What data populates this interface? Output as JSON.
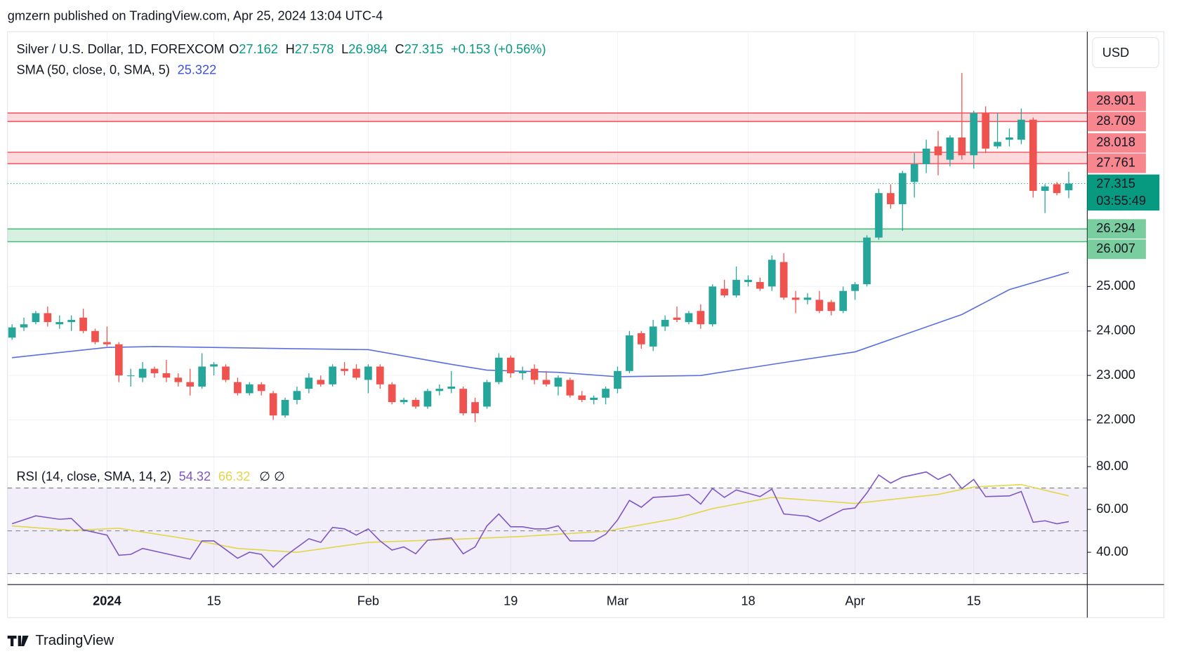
{
  "header": {
    "attribution": "gmzern published on TradingView.com, Apr 25, 2024 13:04 UTC-4"
  },
  "currency": "USD",
  "footer": {
    "brand": "TradingView"
  },
  "chart_data": [
    {
      "type": "candlestick",
      "title": "Silver / U.S. Dollar, 1D, FOREXCOM",
      "ohlc_legend": [
        {
          "label": "O",
          "value": "27.162"
        },
        {
          "label": "H",
          "value": "27.578"
        },
        {
          "label": "L",
          "value": "26.984"
        },
        {
          "label": "C",
          "value": "27.315"
        }
      ],
      "change": "+0.153 (+0.56%)",
      "up_color": "#26a69a",
      "down_color": "#ef5350",
      "open": [
        23.85,
        24.08,
        24.2,
        24.4,
        24.15,
        24.2,
        24.3,
        24.0,
        23.75,
        23.7,
        23.0,
        22.95,
        23.15,
        23.05,
        22.95,
        22.85,
        22.75,
        23.2,
        23.2,
        22.85,
        22.6,
        22.8,
        22.6,
        22.1,
        22.45,
        22.7,
        22.9,
        22.8,
        23.15,
        23.15,
        22.9,
        23.2,
        22.8,
        22.4,
        22.45,
        22.3,
        22.65,
        22.7,
        22.7,
        22.4,
        22.3,
        22.85,
        23.4,
        23.05,
        23.15,
        22.9,
        22.75,
        22.9,
        22.55,
        22.45,
        22.5,
        22.7,
        23.1,
        23.95,
        23.65,
        24.1,
        24.3,
        24.2,
        24.45,
        24.15,
        24.95,
        24.8,
        25.1,
        25.1,
        25.0,
        25.55,
        24.75,
        24.7,
        24.7,
        24.65,
        24.45,
        24.9,
        25.05,
        26.1,
        27.1,
        26.85,
        27.35,
        27.75,
        28.15,
        27.85,
        28.35,
        27.95,
        28.9,
        28.15,
        28.3,
        28.3,
        28.75,
        27.15,
        27.3,
        27.162
      ],
      "high": [
        24.15,
        24.3,
        24.45,
        24.55,
        24.35,
        24.35,
        24.5,
        24.05,
        24.1,
        23.75,
        23.15,
        23.3,
        23.2,
        23.35,
        23.05,
        23.15,
        23.5,
        23.3,
        23.25,
        22.95,
        22.85,
        22.85,
        22.65,
        22.5,
        22.75,
        23.05,
        23.0,
        23.25,
        23.3,
        23.25,
        23.25,
        23.25,
        22.85,
        22.5,
        22.5,
        22.7,
        22.8,
        23.1,
        22.75,
        22.5,
        22.9,
        23.5,
        23.45,
        23.2,
        23.25,
        23.1,
        23.0,
        22.95,
        22.65,
        22.55,
        22.75,
        23.2,
        24.0,
        24.0,
        24.25,
        24.35,
        24.55,
        24.45,
        24.6,
        25.05,
        25.15,
        25.45,
        25.25,
        25.2,
        25.7,
        25.75,
        24.9,
        24.85,
        24.9,
        24.7,
        25.0,
        25.1,
        26.15,
        27.2,
        27.3,
        27.6,
        28.0,
        28.3,
        28.5,
        28.4,
        29.8,
        28.95,
        29.05,
        28.9,
        28.55,
        29.0,
        28.8,
        27.3,
        27.35,
        27.578
      ],
      "low": [
        23.8,
        24.0,
        24.15,
        24.1,
        24.05,
        24.0,
        23.95,
        23.7,
        23.65,
        22.85,
        22.75,
        22.85,
        22.95,
        22.85,
        22.75,
        22.55,
        22.7,
        23.0,
        22.85,
        22.55,
        22.55,
        22.55,
        22.0,
        22.05,
        22.35,
        22.6,
        22.75,
        22.75,
        23.0,
        22.9,
        22.6,
        22.7,
        22.35,
        22.35,
        22.25,
        22.25,
        22.55,
        22.6,
        22.1,
        21.95,
        22.25,
        22.8,
        22.95,
        22.9,
        22.8,
        22.75,
        22.55,
        22.5,
        22.4,
        22.35,
        22.35,
        22.6,
        23.05,
        23.6,
        23.55,
        24.0,
        24.2,
        24.15,
        24.05,
        24.1,
        24.75,
        24.75,
        25.0,
        24.9,
        24.9,
        24.7,
        24.4,
        24.6,
        24.4,
        24.35,
        24.4,
        24.7,
        25.0,
        26.05,
        26.75,
        26.25,
        27.0,
        27.55,
        27.5,
        27.7,
        27.85,
        27.65,
        28.0,
        28.1,
        28.15,
        28.2,
        27.0,
        26.65,
        27.05,
        26.984
      ],
      "close": [
        24.08,
        24.15,
        24.4,
        24.2,
        24.2,
        24.25,
        24.0,
        23.75,
        23.7,
        23.0,
        23.0,
        23.15,
        23.05,
        22.95,
        22.85,
        22.75,
        23.2,
        23.25,
        22.9,
        22.6,
        22.8,
        22.65,
        22.1,
        22.45,
        22.65,
        22.95,
        22.8,
        23.2,
        23.1,
        22.95,
        23.2,
        22.8,
        22.4,
        22.45,
        22.3,
        22.65,
        22.7,
        22.75,
        22.15,
        22.15,
        22.85,
        23.4,
        23.05,
        23.1,
        22.9,
        22.8,
        22.95,
        22.55,
        22.45,
        22.5,
        22.7,
        23.1,
        23.9,
        23.7,
        24.1,
        24.25,
        24.25,
        24.4,
        24.15,
        25.0,
        24.8,
        25.15,
        25.15,
        24.95,
        25.6,
        24.75,
        24.7,
        24.75,
        24.45,
        24.45,
        24.9,
        25.05,
        26.1,
        27.1,
        26.85,
        27.55,
        27.75,
        28.1,
        27.95,
        28.35,
        27.95,
        28.9,
        28.1,
        28.25,
        28.35,
        28.75,
        27.15,
        27.25,
        27.1,
        27.315
      ],
      "xlim": [
        -0.38,
        90.56
      ],
      "xticks": [
        {
          "value": 8,
          "label": "2024"
        },
        {
          "value": 17,
          "label": "15"
        },
        {
          "value": 30,
          "label": "Feb"
        },
        {
          "value": 42,
          "label": "19"
        },
        {
          "value": 51,
          "label": "Mar"
        },
        {
          "value": 62,
          "label": "18"
        },
        {
          "value": 71,
          "label": "Apr"
        },
        {
          "value": 81,
          "label": "15"
        }
      ],
      "ylim": [
        21.17,
        30.73
      ],
      "yticks": [
        {
          "value": 22,
          "label": "22.000"
        },
        {
          "value": 23,
          "label": "23.000"
        },
        {
          "value": 24,
          "label": "24.000"
        },
        {
          "value": 25,
          "label": "25.000"
        }
      ],
      "grid": true,
      "zones": [
        {
          "low": 28.709,
          "high": 28.901,
          "color": "#f23645"
        },
        {
          "low": 27.761,
          "high": 28.018,
          "color": "#f23645"
        },
        {
          "low": 26.007,
          "high": 26.294,
          "color": "#22ab5e"
        }
      ],
      "last_price": 27.315,
      "last_color": "#089981",
      "countdown": "03:55:49",
      "overlays": [
        {
          "name": "SMA (50, close, 0, SMA, 5)",
          "color": "#5b6ee1",
          "value_label": "25.322",
          "x": [
            0,
            8,
            12,
            24,
            30,
            37,
            40,
            46,
            51,
            58,
            65,
            71,
            80,
            84,
            89
          ],
          "values": [
            23.4,
            23.63,
            23.65,
            23.6,
            23.58,
            23.25,
            23.12,
            23.07,
            22.97,
            23.0,
            23.29,
            23.53,
            24.37,
            24.93,
            25.32
          ]
        }
      ]
    },
    {
      "type": "line",
      "title": "RSI (14, close, SMA, 14, 2)",
      "extra_label": "∅ ∅",
      "ylim": [
        24.91,
        84.56
      ],
      "yticks": [
        {
          "value": 40,
          "label": "40.00"
        },
        {
          "value": 60,
          "label": "60.00"
        },
        {
          "value": 80,
          "label": "80.00"
        }
      ],
      "xlim": [
        -0.38,
        90.56
      ],
      "band": [
        30,
        70
      ],
      "band_color": "#7e57c2",
      "levels": [
        70,
        50,
        30
      ],
      "series": [
        {
          "color": "#7e57c2",
          "value_label": "54.32",
          "x": [
            0,
            2,
            4,
            5,
            6,
            8,
            9,
            10,
            11,
            13,
            15,
            16,
            17,
            19,
            20,
            21,
            22,
            23,
            25,
            26,
            27,
            28,
            29,
            30,
            31,
            32,
            33,
            34,
            35,
            37,
            38,
            39,
            40,
            41,
            42,
            43,
            44,
            45,
            46,
            47,
            49,
            50,
            51,
            52,
            53,
            54,
            56,
            57,
            58,
            59,
            60,
            61,
            63,
            64,
            65,
            67,
            68,
            70,
            71,
            72,
            73,
            74,
            75,
            77,
            78,
            79,
            80,
            81,
            82,
            84,
            85,
            86,
            87,
            88,
            89
          ],
          "values": [
            53.3,
            57,
            55.4,
            55.8,
            50.5,
            48,
            38.6,
            39,
            41.8,
            39.3,
            36.8,
            45.3,
            45.3,
            37.2,
            40,
            39,
            33,
            38.2,
            46.3,
            44.6,
            51.6,
            50.9,
            48,
            50.9,
            45.3,
            41,
            42.5,
            39.3,
            45.6,
            46.7,
            39.3,
            42.5,
            52.3,
            57.9,
            51.9,
            51.9,
            50.9,
            50.9,
            52.3,
            45.3,
            45.3,
            48.4,
            55.1,
            64.2,
            61,
            65.6,
            66.3,
            67,
            62.5,
            69.8,
            65.6,
            69.1,
            66,
            69.5,
            57.9,
            56.8,
            54.4,
            60,
            60.7,
            67.7,
            76.1,
            72.3,
            75.1,
            77.5,
            74,
            76.5,
            69.8,
            74,
            66,
            66.3,
            68.4,
            54,
            54.7,
            53.3,
            54.32
          ]
        },
        {
          "color": "#e2d64a",
          "value_label": "66.32",
          "x": [
            0,
            5,
            9,
            15,
            19,
            24,
            30,
            37,
            43,
            50,
            56,
            59,
            64,
            71,
            78,
            81,
            85,
            89
          ],
          "values": [
            52.3,
            50.2,
            51.2,
            46,
            41.8,
            40,
            44.6,
            46,
            47.4,
            49.8,
            55.8,
            60.4,
            65.6,
            62.8,
            67,
            70.5,
            71.6,
            66.32
          ]
        }
      ]
    }
  ]
}
